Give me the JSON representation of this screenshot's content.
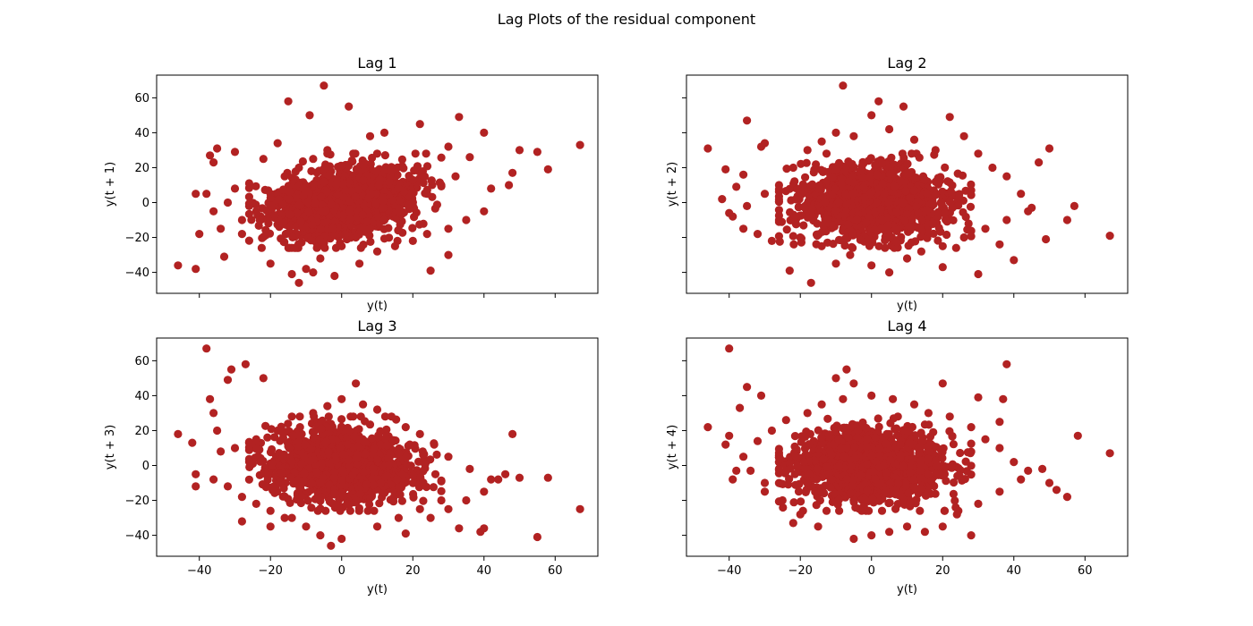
{
  "figure_title": "Lag Plots of the residual component",
  "marker_color": "#b22222",
  "chart_data": [
    {
      "type": "scatter",
      "title": "Lag 1",
      "xlabel": "y(t)",
      "ylabel": "y(t + 1)",
      "xlim": [
        -52,
        72
      ],
      "ylim": [
        -52,
        73
      ],
      "xticks": [
        -40,
        -20,
        0,
        20,
        40,
        60
      ],
      "yticks": [
        -40,
        -20,
        0,
        20,
        40,
        60
      ],
      "show_xticklabels": false,
      "show_yticklabels": true,
      "points": [
        [
          -46,
          -36
        ],
        [
          -41,
          -38
        ],
        [
          -41,
          5
        ],
        [
          -38,
          5
        ],
        [
          -37,
          27
        ],
        [
          -36,
          23
        ],
        [
          -35,
          31
        ],
        [
          -33,
          -31
        ],
        [
          -30,
          29
        ],
        [
          -15,
          58
        ],
        [
          -12,
          -46
        ],
        [
          -9,
          50
        ],
        [
          -5,
          67
        ],
        [
          2,
          55
        ],
        [
          -8,
          -40
        ],
        [
          25,
          -39
        ],
        [
          33,
          49
        ],
        [
          40,
          40
        ],
        [
          50,
          30
        ],
        [
          55,
          29
        ],
        [
          58,
          19
        ],
        [
          67,
          33
        ],
        [
          -2,
          -42
        ],
        [
          5,
          -35
        ],
        [
          -20,
          -35
        ],
        [
          -10,
          -38
        ],
        [
          30,
          -30
        ],
        [
          -40,
          -18
        ],
        [
          -34,
          -15
        ],
        [
          -28,
          -18
        ],
        [
          -26,
          11
        ],
        [
          -22,
          25
        ],
        [
          -18,
          34
        ],
        [
          -14,
          -41
        ],
        [
          -6,
          -32
        ],
        [
          10,
          -28
        ],
        [
          15,
          -25
        ],
        [
          20,
          -22
        ],
        [
          24,
          -18
        ],
        [
          30,
          -15
        ],
        [
          35,
          -10
        ],
        [
          40,
          -5
        ],
        [
          42,
          8
        ],
        [
          47,
          10
        ],
        [
          48,
          17
        ],
        [
          36,
          26
        ],
        [
          30,
          32
        ],
        [
          22,
          45
        ],
        [
          12,
          40
        ],
        [
          8,
          38
        ],
        [
          -28,
          -10
        ],
        [
          -24,
          -5
        ],
        [
          -20,
          5
        ],
        [
          -16,
          15
        ],
        [
          -12,
          20
        ],
        [
          -8,
          25
        ],
        [
          -4,
          30
        ],
        [
          0,
          -25
        ],
        [
          4,
          -20
        ],
        [
          8,
          -15
        ],
        [
          12,
          -10
        ],
        [
          16,
          -5
        ],
        [
          20,
          0
        ],
        [
          24,
          5
        ],
        [
          28,
          10
        ],
        [
          32,
          15
        ],
        [
          -36,
          -5
        ],
        [
          -32,
          0
        ],
        [
          -30,
          8
        ],
        [
          -26,
          -2
        ]
      ],
      "cloud": {
        "n": 1500,
        "x_sd": 10,
        "y_sd": 10,
        "corr": 0.3,
        "clip": [
          -26,
          28
        ],
        "seed": 11
      }
    },
    {
      "type": "scatter",
      "title": "Lag 2",
      "xlabel": "y(t)",
      "ylabel": "y(t + 2)",
      "xlim": [
        -52,
        72
      ],
      "ylim": [
        -52,
        73
      ],
      "xticks": [
        -40,
        -20,
        0,
        20,
        40,
        60
      ],
      "yticks": [
        -40,
        -20,
        0,
        20,
        40,
        60
      ],
      "show_xticklabels": false,
      "show_yticklabels": false,
      "points": [
        [
          -46,
          31
        ],
        [
          -41,
          19
        ],
        [
          -39,
          -8
        ],
        [
          -36,
          16
        ],
        [
          -35,
          47
        ],
        [
          -31,
          32
        ],
        [
          -30,
          34
        ],
        [
          -23,
          -39
        ],
        [
          -17,
          -46
        ],
        [
          -8,
          67
        ],
        [
          0,
          50
        ],
        [
          2,
          58
        ],
        [
          9,
          55
        ],
        [
          22,
          49
        ],
        [
          47,
          23
        ],
        [
          50,
          31
        ],
        [
          57,
          -2
        ],
        [
          55,
          -10
        ],
        [
          49,
          -21
        ],
        [
          67,
          -19
        ],
        [
          40,
          -33
        ],
        [
          30,
          -41
        ],
        [
          20,
          -37
        ],
        [
          10,
          -32
        ],
        [
          0,
          -36
        ],
        [
          -10,
          -35
        ],
        [
          5,
          -40
        ],
        [
          -28,
          -22
        ],
        [
          -32,
          -18
        ],
        [
          -36,
          -15
        ],
        [
          -40,
          -6
        ],
        [
          -35,
          -2
        ],
        [
          -30,
          5
        ],
        [
          -26,
          10
        ],
        [
          -22,
          20
        ],
        [
          -18,
          30
        ],
        [
          -14,
          35
        ],
        [
          -10,
          40
        ],
        [
          -5,
          38
        ],
        [
          5,
          42
        ],
        [
          12,
          36
        ],
        [
          18,
          30
        ],
        [
          26,
          38
        ],
        [
          30,
          28
        ],
        [
          34,
          20
        ],
        [
          38,
          15
        ],
        [
          42,
          5
        ],
        [
          44,
          -5
        ],
        [
          38,
          -10
        ],
        [
          32,
          -15
        ],
        [
          26,
          -20
        ],
        [
          20,
          -25
        ],
        [
          14,
          -28
        ],
        [
          -6,
          -30
        ],
        [
          -14,
          -25
        ],
        [
          -20,
          -20
        ],
        [
          -26,
          -10
        ],
        [
          -38,
          9
        ],
        [
          -42,
          2
        ],
        [
          36,
          -24
        ],
        [
          45,
          -3
        ]
      ],
      "cloud": {
        "n": 1500,
        "x_sd": 10,
        "y_sd": 10,
        "corr": 0.0,
        "clip": [
          -26,
          28
        ],
        "seed": 23
      }
    },
    {
      "type": "scatter",
      "title": "Lag 3",
      "xlabel": "y(t)",
      "ylabel": "y(t + 3)",
      "xlim": [
        -52,
        72
      ],
      "ylim": [
        -52,
        73
      ],
      "xticks": [
        -40,
        -20,
        0,
        20,
        40,
        60
      ],
      "yticks": [
        -40,
        -20,
        0,
        20,
        40,
        60
      ],
      "show_xticklabels": true,
      "show_yticklabels": true,
      "points": [
        [
          -46,
          18
        ],
        [
          -42,
          13
        ],
        [
          -41,
          -5
        ],
        [
          -41,
          -12
        ],
        [
          -38,
          67
        ],
        [
          -37,
          38
        ],
        [
          -36,
          30
        ],
        [
          -35,
          20
        ],
        [
          -32,
          49
        ],
        [
          -31,
          55
        ],
        [
          -27,
          58
        ],
        [
          -22,
          50
        ],
        [
          -28,
          -32
        ],
        [
          -6,
          -40
        ],
        [
          -3,
          -46
        ],
        [
          0,
          -42
        ],
        [
          4,
          47
        ],
        [
          18,
          -39
        ],
        [
          33,
          -36
        ],
        [
          39,
          -38
        ],
        [
          40,
          -36
        ],
        [
          48,
          18
        ],
        [
          50,
          -7
        ],
        [
          55,
          -41
        ],
        [
          58,
          -7
        ],
        [
          67,
          -25
        ],
        [
          -20,
          -35
        ],
        [
          -14,
          -30
        ],
        [
          -10,
          -35
        ],
        [
          10,
          -35
        ],
        [
          25,
          -30
        ],
        [
          30,
          -25
        ],
        [
          35,
          -20
        ],
        [
          40,
          -15
        ],
        [
          44,
          -8
        ],
        [
          46,
          -5
        ],
        [
          42,
          -8
        ],
        [
          36,
          -2
        ],
        [
          30,
          5
        ],
        [
          26,
          12
        ],
        [
          22,
          18
        ],
        [
          18,
          22
        ],
        [
          14,
          28
        ],
        [
          10,
          32
        ],
        [
          6,
          35
        ],
        [
          0,
          38
        ],
        [
          -4,
          34
        ],
        [
          -8,
          30
        ],
        [
          -14,
          28
        ],
        [
          -18,
          20
        ],
        [
          -24,
          15
        ],
        [
          -30,
          10
        ],
        [
          -34,
          8
        ],
        [
          -36,
          -8
        ],
        [
          -32,
          -12
        ],
        [
          -28,
          -18
        ],
        [
          -24,
          -22
        ],
        [
          -20,
          -26
        ],
        [
          -16,
          -30
        ],
        [
          16,
          -30
        ],
        [
          22,
          -25
        ],
        [
          28,
          -20
        ]
      ],
      "cloud": {
        "n": 1500,
        "x_sd": 10,
        "y_sd": 10,
        "corr": -0.1,
        "clip": [
          -26,
          28
        ],
        "seed": 37
      }
    },
    {
      "type": "scatter",
      "title": "Lag 4",
      "xlabel": "y(t)",
      "ylabel": "y(t + 4)",
      "xlim": [
        -52,
        72
      ],
      "ylim": [
        -52,
        73
      ],
      "xticks": [
        -40,
        -20,
        0,
        20,
        40,
        60
      ],
      "yticks": [
        -40,
        -20,
        0,
        20,
        40,
        60
      ],
      "show_xticklabels": true,
      "show_yticklabels": false,
      "points": [
        [
          -46,
          22
        ],
        [
          -41,
          12
        ],
        [
          -40,
          67
        ],
        [
          -39,
          -8
        ],
        [
          -37,
          33
        ],
        [
          -35,
          45
        ],
        [
          -31,
          40
        ],
        [
          -30,
          -15
        ],
        [
          -22,
          -33
        ],
        [
          -10,
          50
        ],
        [
          -7,
          55
        ],
        [
          -5,
          47
        ],
        [
          -5,
          -42
        ],
        [
          0,
          -40
        ],
        [
          5,
          -38
        ],
        [
          10,
          -35
        ],
        [
          20,
          47
        ],
        [
          30,
          39
        ],
        [
          38,
          58
        ],
        [
          37,
          38
        ],
        [
          36,
          25
        ],
        [
          50,
          -10
        ],
        [
          52,
          -14
        ],
        [
          55,
          -18
        ],
        [
          58,
          17
        ],
        [
          67,
          7
        ],
        [
          28,
          -40
        ],
        [
          20,
          -35
        ],
        [
          15,
          -38
        ],
        [
          -15,
          -35
        ],
        [
          -20,
          -28
        ],
        [
          -25,
          -20
        ],
        [
          -30,
          -10
        ],
        [
          -34,
          -3
        ],
        [
          -36,
          5
        ],
        [
          -32,
          14
        ],
        [
          -28,
          20
        ],
        [
          -24,
          26
        ],
        [
          -18,
          30
        ],
        [
          -14,
          35
        ],
        [
          -8,
          38
        ],
        [
          0,
          40
        ],
        [
          6,
          38
        ],
        [
          12,
          35
        ],
        [
          16,
          30
        ],
        [
          22,
          28
        ],
        [
          28,
          22
        ],
        [
          32,
          15
        ],
        [
          36,
          10
        ],
        [
          40,
          2
        ],
        [
          44,
          -3
        ],
        [
          42,
          -8
        ],
        [
          36,
          -15
        ],
        [
          30,
          -22
        ],
        [
          24,
          -28
        ],
        [
          -40,
          17
        ],
        [
          -38,
          -3
        ],
        [
          48,
          -2
        ]
      ],
      "cloud": {
        "n": 1500,
        "x_sd": 10,
        "y_sd": 10,
        "corr": -0.05,
        "clip": [
          -26,
          28
        ],
        "seed": 53
      }
    }
  ]
}
